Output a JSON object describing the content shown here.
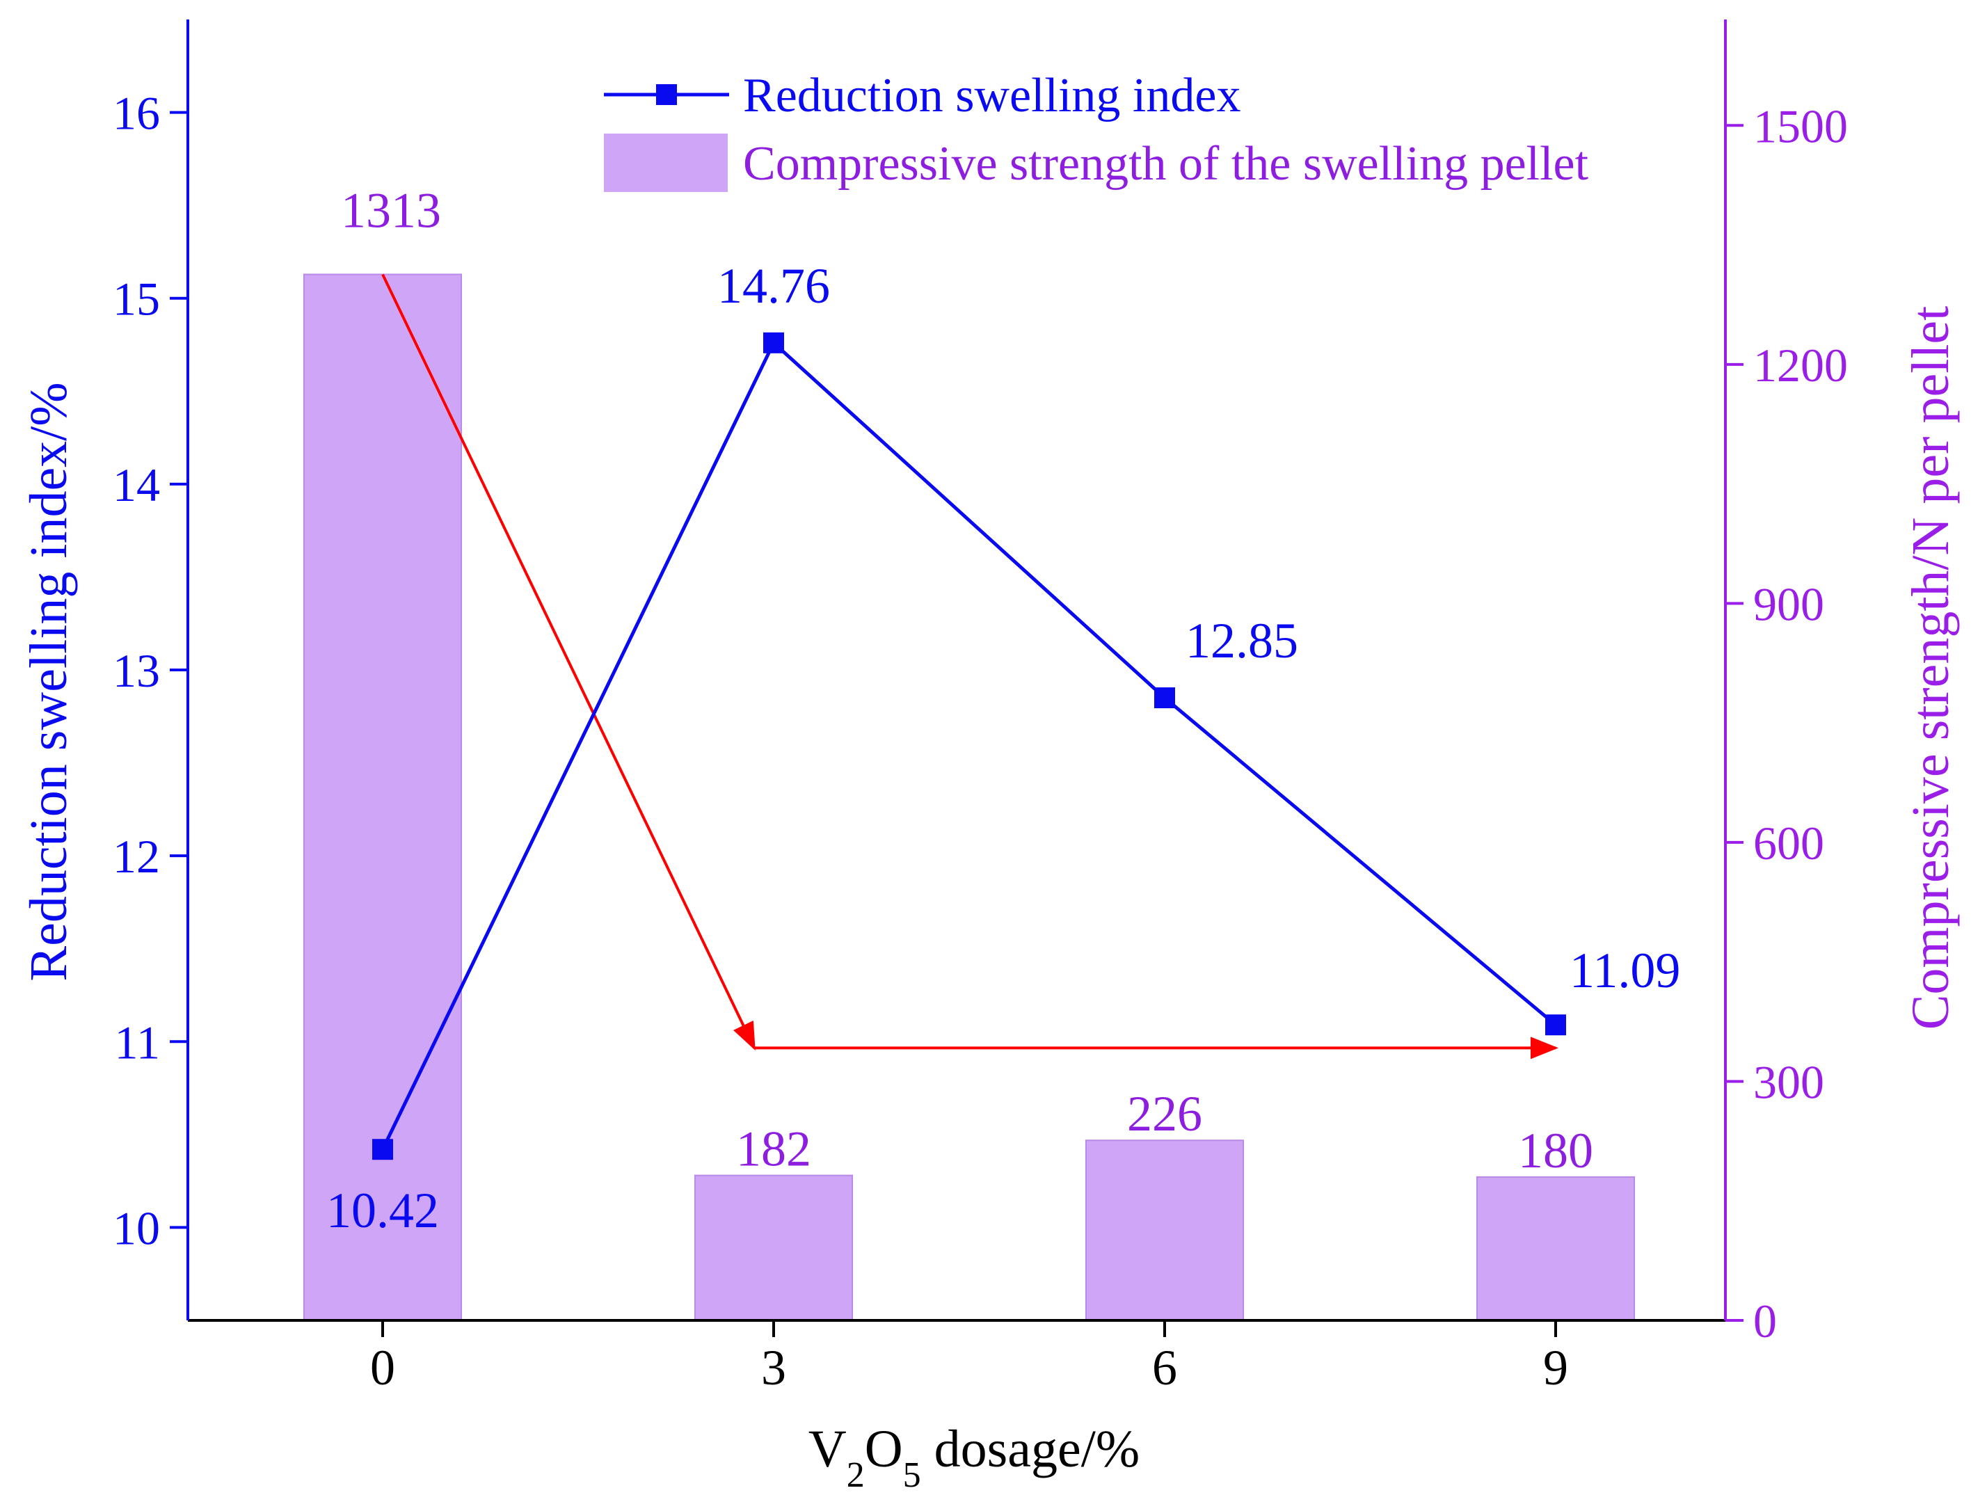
{
  "chart_data": {
    "type": "bar+line",
    "categories": [
      "0",
      "3",
      "6",
      "9"
    ],
    "x_values": [
      0,
      3,
      6,
      9
    ],
    "xlabel": {
      "base": "V",
      "sub1": "2",
      "mid": "O",
      "sub2": "5",
      "rest": " dosage/%"
    },
    "y_left": {
      "label": "Reduction swelling index/%",
      "ticks": [
        10,
        11,
        12,
        13,
        14,
        15,
        16
      ],
      "range": [
        9.5,
        16.5
      ]
    },
    "y_right": {
      "label": "Compressive strength/N per pellet",
      "ticks": [
        0,
        300,
        600,
        900,
        1200,
        1500
      ],
      "range": [
        0,
        1633
      ]
    },
    "series": [
      {
        "name": "Reduction swelling index",
        "type": "line",
        "axis": "left",
        "values": [
          10.42,
          14.76,
          12.85,
          11.09
        ],
        "labels": [
          "10.42",
          "14.76",
          "12.85",
          "11.09"
        ],
        "color": "#0a0af0"
      },
      {
        "name": "Compressive strength of the swelling pellet",
        "type": "bar",
        "axis": "right",
        "values": [
          1313,
          182,
          226,
          180
        ],
        "labels": [
          "1313",
          "182",
          "226",
          "180"
        ],
        "color": "#cfa6f7",
        "label_color": "#8d1ee0"
      }
    ],
    "annotations": [
      {
        "type": "arrow",
        "color": "#ff0000",
        "from": {
          "x": 0,
          "strength": 1313
        },
        "to": {
          "x": 3,
          "strength": 342
        }
      },
      {
        "type": "arrow",
        "color": "#ff0000",
        "from": {
          "x": 3,
          "strength": 342
        },
        "to": {
          "x": 9,
          "strength": 342
        }
      }
    ],
    "legend": {
      "position": "top-right"
    }
  },
  "colors": {
    "left_axis": "#0a0af0",
    "right_axis": "#9a1ee8",
    "bar_fill": "#cfa6f7",
    "bar_label": "#8d1ee0",
    "arrow": "#ff0000",
    "frame": "#000000"
  }
}
